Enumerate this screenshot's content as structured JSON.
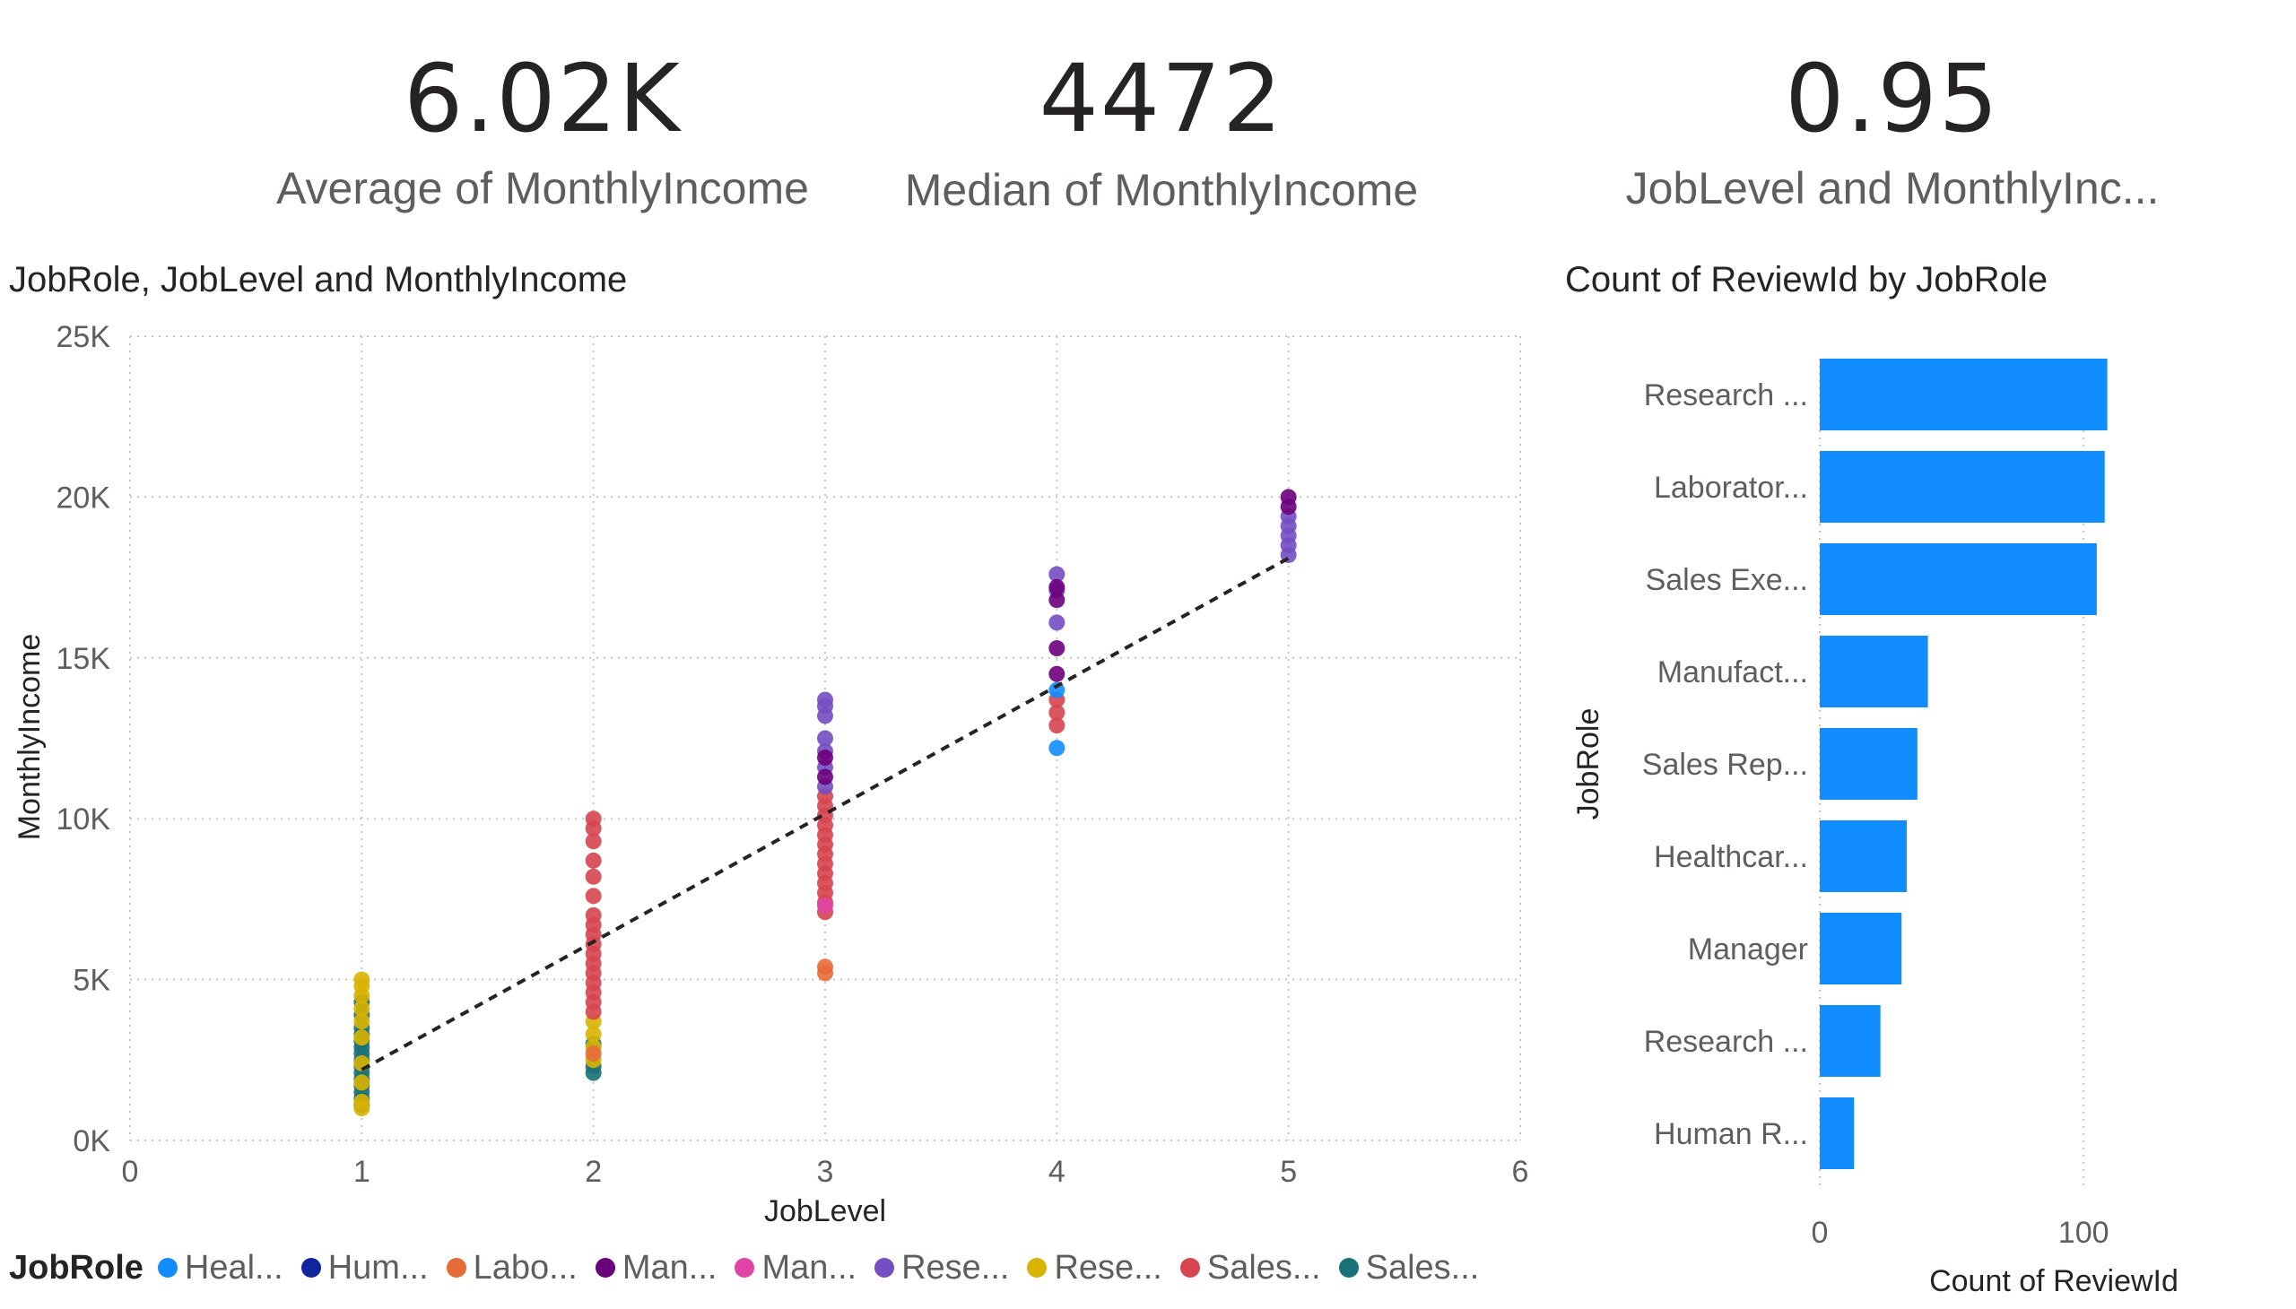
{
  "kpis": [
    {
      "value": "6.02K",
      "label": "Average of MonthlyIncome"
    },
    {
      "value": "4472",
      "label": "Median of MonthlyIncome"
    },
    {
      "value": "0.95",
      "label": "JobLevel and MonthlyInc..."
    }
  ],
  "scatter_title": "JobRole, JobLevel and MonthlyIncome",
  "bar_title": "Count of ReviewId by JobRole",
  "legend": {
    "title": "JobRole",
    "items": [
      {
        "label": "Heal...",
        "color": "#118dff"
      },
      {
        "label": "Hum...",
        "color": "#12239e"
      },
      {
        "label": "Labo...",
        "color": "#e66c37"
      },
      {
        "label": "Man...",
        "color": "#6b007b"
      },
      {
        "label": "Man...",
        "color": "#e044a7"
      },
      {
        "label": "Rese...",
        "color": "#744ec2"
      },
      {
        "label": "Rese...",
        "color": "#d9b300"
      },
      {
        "label": "Sales...",
        "color": "#d64550"
      },
      {
        "label": "Sales...",
        "color": "#197278"
      }
    ]
  },
  "chart_data": [
    {
      "type": "scatter",
      "title": "JobRole, JobLevel and MonthlyIncome",
      "xlabel": "JobLevel",
      "ylabel": "MonthlyIncome",
      "xlim": [
        0,
        6
      ],
      "ylim": [
        0,
        25000
      ],
      "xticks": [
        "0",
        "1",
        "2",
        "3",
        "4",
        "5",
        "6"
      ],
      "yticks": [
        "0K",
        "5K",
        "10K",
        "15K",
        "20K",
        "25K"
      ],
      "grid": true,
      "trendline": {
        "x": [
          1,
          5
        ],
        "y": [
          2200,
          18100
        ]
      },
      "series": [
        {
          "color": "#197278",
          "points": [
            [
              1,
              1100
            ],
            [
              1,
              1300
            ],
            [
              1,
              1500
            ],
            [
              1,
              1700
            ],
            [
              1,
              1900
            ],
            [
              1,
              2100
            ],
            [
              1,
              2300
            ],
            [
              1,
              2500
            ],
            [
              1,
              2700
            ],
            [
              1,
              2900
            ],
            [
              1,
              3100
            ],
            [
              1,
              3300
            ],
            [
              1,
              3500
            ],
            [
              1,
              3900
            ],
            [
              1,
              4300
            ],
            [
              2,
              2100
            ],
            [
              2,
              2300
            ],
            [
              2,
              3000
            ]
          ]
        },
        {
          "color": "#d9b300",
          "points": [
            [
              1,
              1000
            ],
            [
              1,
              1200
            ],
            [
              1,
              1800
            ],
            [
              1,
              2400
            ],
            [
              1,
              3200
            ],
            [
              1,
              3700
            ],
            [
              1,
              4100
            ],
            [
              1,
              4500
            ],
            [
              1,
              4800
            ],
            [
              1,
              5000
            ],
            [
              2,
              2500
            ],
            [
              2,
              2900
            ],
            [
              2,
              3300
            ],
            [
              2,
              3700
            ]
          ]
        },
        {
          "color": "#d64550",
          "points": [
            [
              2,
              4000
            ],
            [
              2,
              4300
            ],
            [
              2,
              4600
            ],
            [
              2,
              4900
            ],
            [
              2,
              5200
            ],
            [
              2,
              5500
            ],
            [
              2,
              5800
            ],
            [
              2,
              6100
            ],
            [
              2,
              6400
            ],
            [
              2,
              6700
            ],
            [
              2,
              7000
            ],
            [
              2,
              7600
            ],
            [
              2,
              8200
            ],
            [
              2,
              8700
            ],
            [
              2,
              9300
            ],
            [
              2,
              9700
            ],
            [
              2,
              10000
            ],
            [
              3,
              7100
            ],
            [
              3,
              7400
            ],
            [
              3,
              7700
            ],
            [
              3,
              8000
            ],
            [
              3,
              8300
            ],
            [
              3,
              8600
            ],
            [
              3,
              8900
            ],
            [
              3,
              9200
            ],
            [
              3,
              9500
            ],
            [
              3,
              9800
            ],
            [
              3,
              10100
            ],
            [
              3,
              10400
            ],
            [
              3,
              10700
            ],
            [
              4,
              12900
            ],
            [
              4,
              13300
            ],
            [
              4,
              13700
            ]
          ]
        },
        {
          "color": "#e66c37",
          "points": [
            [
              2,
              2700
            ],
            [
              3,
              5200
            ],
            [
              3,
              5400
            ]
          ]
        },
        {
          "color": "#744ec2",
          "points": [
            [
              3,
              11000
            ],
            [
              3,
              11600
            ],
            [
              3,
              12100
            ],
            [
              3,
              12500
            ],
            [
              3,
              13200
            ],
            [
              3,
              13500
            ],
            [
              3,
              13700
            ],
            [
              4,
              16100
            ],
            [
              4,
              17100
            ],
            [
              4,
              17600
            ],
            [
              5,
              18200
            ],
            [
              5,
              18500
            ],
            [
              5,
              18800
            ],
            [
              5,
              19100
            ],
            [
              5,
              19400
            ]
          ]
        },
        {
          "color": "#6b007b",
          "points": [
            [
              3,
              11300
            ],
            [
              3,
              11900
            ],
            [
              4,
              14500
            ],
            [
              4,
              15300
            ],
            [
              4,
              16800
            ],
            [
              4,
              17200
            ],
            [
              5,
              19700
            ],
            [
              5,
              20000
            ]
          ]
        },
        {
          "color": "#118dff",
          "points": [
            [
              4,
              12200
            ],
            [
              4,
              14000
            ]
          ]
        },
        {
          "color": "#e044a7",
          "points": [
            [
              3,
              7300
            ]
          ]
        }
      ]
    },
    {
      "type": "bar",
      "orientation": "horizontal",
      "title": "Count of ReviewId by JobRole",
      "xlabel": "Count of ReviewId",
      "ylabel": "JobRole",
      "categories": [
        "Research ...",
        "Laborator...",
        "Sales Exe...",
        "Manufact...",
        "Sales Rep...",
        "Healthcar...",
        "Manager",
        "Research ...",
        "Human R..."
      ],
      "values": [
        109,
        108,
        105,
        41,
        37,
        33,
        31,
        23,
        13
      ],
      "xlim": [
        0,
        120
      ],
      "xticks": [
        "0",
        "100"
      ],
      "color": "#118dff"
    }
  ]
}
